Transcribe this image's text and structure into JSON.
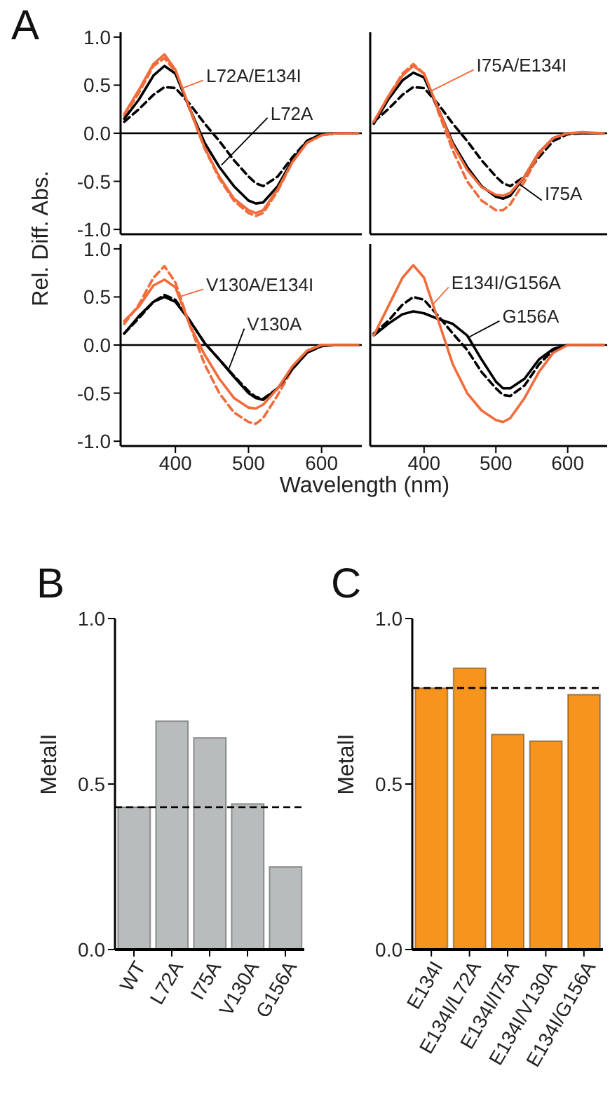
{
  "chart_data": [
    {
      "type": "line",
      "title": "A",
      "ylabel": "Rel. Diff. Abs.",
      "x": [
        330,
        350,
        370,
        385,
        400,
        420,
        440,
        460,
        480,
        500,
        510,
        520,
        540,
        560,
        580,
        600,
        620,
        650
      ],
      "xlim": [
        325,
        655
      ],
      "xticks": [
        400,
        500,
        600
      ],
      "ylim": [
        -1.05,
        1.05
      ],
      "yticks": [
        {
          "value": -1,
          "label": "-1.0"
        },
        {
          "value": -0.5,
          "label": "-0.5"
        },
        {
          "value": 0,
          "label": "0.0"
        },
        {
          "value": 0.5,
          "label": "0.5"
        },
        {
          "value": 1,
          "label": "1.0"
        }
      ],
      "tick_labels": "y",
      "ref_lines": [
        {
          "axis": "y",
          "value": 0,
          "color": "#000000"
        }
      ],
      "series": [
        {
          "color": "#000000",
          "line_style": "dashed",
          "values": [
            0.12,
            0.25,
            0.4,
            0.48,
            0.47,
            0.3,
            0.1,
            -0.08,
            -0.28,
            -0.45,
            -0.52,
            -0.55,
            -0.45,
            -0.25,
            -0.08,
            -0.01,
            0,
            0
          ]
        },
        {
          "color": "#f26b3a",
          "line_style": "dashed",
          "values": [
            0.18,
            0.42,
            0.7,
            0.78,
            0.64,
            0.24,
            -0.16,
            -0.47,
            -0.7,
            -0.83,
            -0.86,
            -0.83,
            -0.6,
            -0.3,
            -0.1,
            -0.02,
            0,
            0
          ]
        },
        {
          "name": "L72A",
          "color": "#000000",
          "line_style": "solid",
          "values": [
            0.15,
            0.35,
            0.6,
            0.7,
            0.62,
            0.25,
            -0.1,
            -0.35,
            -0.55,
            -0.7,
            -0.73,
            -0.72,
            -0.55,
            -0.28,
            -0.08,
            -0.01,
            0,
            0
          ]
        },
        {
          "name": "L72A/E134I",
          "color": "#f26b3a",
          "line_style": "solid",
          "values": [
            0.2,
            0.45,
            0.72,
            0.82,
            0.66,
            0.25,
            -0.15,
            -0.45,
            -0.68,
            -0.8,
            -0.83,
            -0.8,
            -0.58,
            -0.3,
            -0.1,
            -0.02,
            0,
            0
          ]
        }
      ]
    },
    {
      "type": "line",
      "x": [
        330,
        350,
        370,
        385,
        400,
        420,
        440,
        460,
        480,
        500,
        510,
        520,
        540,
        560,
        580,
        600,
        620,
        650
      ],
      "xlim": [
        325,
        655
      ],
      "xticks": [
        400,
        500,
        600
      ],
      "ylim": [
        -1.05,
        1.05
      ],
      "yticks": [
        {
          "value": -1,
          "label": null
        },
        {
          "value": -0.5,
          "label": null
        },
        {
          "value": 0,
          "label": null
        },
        {
          "value": 0.5,
          "label": null
        },
        {
          "value": 1,
          "label": null
        }
      ],
      "tick_labels": false,
      "ref_lines": [
        {
          "axis": "y",
          "value": 0,
          "color": "#000000"
        }
      ],
      "series": [
        {
          "color": "#000000",
          "line_style": "dashed",
          "values": [
            0.12,
            0.25,
            0.4,
            0.48,
            0.47,
            0.3,
            0.1,
            -0.08,
            -0.28,
            -0.45,
            -0.52,
            -0.55,
            -0.45,
            -0.25,
            -0.08,
            -0.01,
            0,
            0
          ]
        },
        {
          "color": "#f26b3a",
          "line_style": "dashed",
          "values": [
            0.12,
            0.38,
            0.62,
            0.72,
            0.62,
            0.22,
            -0.18,
            -0.5,
            -0.7,
            -0.8,
            -0.8,
            -0.74,
            -0.5,
            -0.22,
            -0.05,
            0,
            0,
            0
          ]
        },
        {
          "name": "I75A",
          "color": "#000000",
          "line_style": "solid",
          "values": [
            0.1,
            0.35,
            0.55,
            0.63,
            0.58,
            0.25,
            -0.1,
            -0.35,
            -0.55,
            -0.66,
            -0.68,
            -0.65,
            -0.45,
            -0.2,
            -0.05,
            0,
            0,
            0
          ]
        },
        {
          "name": "I75A/E134I",
          "color": "#f26b3a",
          "line_style": "solid",
          "values": [
            0.12,
            0.38,
            0.6,
            0.7,
            0.62,
            0.25,
            -0.12,
            -0.38,
            -0.56,
            -0.64,
            -0.65,
            -0.62,
            -0.45,
            -0.2,
            -0.05,
            0,
            0.01,
            0
          ]
        }
      ]
    },
    {
      "type": "line",
      "xlabel": "Wavelength (nm)",
      "x": [
        330,
        350,
        370,
        385,
        400,
        420,
        440,
        460,
        480,
        500,
        510,
        520,
        540,
        560,
        580,
        600,
        620,
        650
      ],
      "xlim": [
        325,
        655
      ],
      "xticks": [
        400,
        500,
        600
      ],
      "ylim": [
        -1.05,
        1.05
      ],
      "yticks": [
        {
          "value": -1,
          "label": "-1.0"
        },
        {
          "value": -0.5,
          "label": "-0.5"
        },
        {
          "value": 0,
          "label": "0.0"
        },
        {
          "value": 0.5,
          "label": "0.5"
        },
        {
          "value": 1,
          "label": "1.0"
        }
      ],
      "ref_lines": [
        {
          "axis": "y",
          "value": 0,
          "color": "#000000"
        }
      ],
      "series": [
        {
          "color": "#000000",
          "line_style": "dashed",
          "values": [
            0.12,
            0.28,
            0.45,
            0.52,
            0.47,
            0.25,
            0.02,
            -0.15,
            -0.32,
            -0.48,
            -0.54,
            -0.56,
            -0.45,
            -0.25,
            -0.08,
            -0.01,
            0,
            0
          ]
        },
        {
          "color": "#f26b3a",
          "line_style": "dashed",
          "values": [
            0.22,
            0.42,
            0.7,
            0.82,
            0.65,
            0.2,
            -0.2,
            -0.5,
            -0.7,
            -0.8,
            -0.82,
            -0.76,
            -0.52,
            -0.25,
            -0.06,
            0,
            0,
            0
          ]
        },
        {
          "name": "V130A",
          "color": "#000000",
          "line_style": "solid",
          "values": [
            0.12,
            0.3,
            0.45,
            0.5,
            0.45,
            0.25,
            0.02,
            -0.15,
            -0.33,
            -0.5,
            -0.55,
            -0.57,
            -0.45,
            -0.25,
            -0.08,
            -0.01,
            0,
            0
          ]
        },
        {
          "name": "V130A/E134I",
          "color": "#f26b3a",
          "line_style": "solid",
          "values": [
            0.25,
            0.4,
            0.62,
            0.68,
            0.6,
            0.2,
            -0.1,
            -0.35,
            -0.55,
            -0.65,
            -0.66,
            -0.62,
            -0.45,
            -0.22,
            -0.06,
            0,
            0,
            0
          ]
        }
      ]
    },
    {
      "type": "line",
      "x": [
        330,
        350,
        370,
        385,
        400,
        420,
        440,
        460,
        480,
        500,
        510,
        520,
        540,
        560,
        580,
        600,
        620,
        650
      ],
      "xlim": [
        325,
        655
      ],
      "xticks": [
        400,
        500,
        600
      ],
      "ylim": [
        -1.05,
        1.05
      ],
      "yticks": [
        {
          "value": -1,
          "label": null
        },
        {
          "value": -0.5,
          "label": null
        },
        {
          "value": 0,
          "label": null
        },
        {
          "value": 0.5,
          "label": null
        },
        {
          "value": 1,
          "label": null
        }
      ],
      "tick_labels": "x",
      "ref_lines": [
        {
          "axis": "y",
          "value": 0,
          "color": "#000000"
        }
      ],
      "series": [
        {
          "color": "#000000",
          "line_style": "dashed",
          "values": [
            0.12,
            0.25,
            0.42,
            0.5,
            0.47,
            0.3,
            0.12,
            -0.05,
            -0.28,
            -0.45,
            -0.52,
            -0.53,
            -0.42,
            -0.2,
            -0.05,
            0,
            0,
            0
          ]
        },
        {
          "name": "G156A",
          "color": "#000000",
          "line_style": "solid",
          "values": [
            0.1,
            0.22,
            0.32,
            0.35,
            0.33,
            0.27,
            0.22,
            0.1,
            -0.15,
            -0.38,
            -0.45,
            -0.45,
            -0.35,
            -0.15,
            -0.04,
            0,
            0,
            0
          ]
        },
        {
          "name": "E134I/G156A",
          "color": "#f26b3a",
          "line_style": "solid",
          "values": [
            0.1,
            0.4,
            0.7,
            0.83,
            0.7,
            0.25,
            -0.2,
            -0.5,
            -0.68,
            -0.78,
            -0.8,
            -0.76,
            -0.55,
            -0.28,
            -0.08,
            0,
            0,
            0
          ]
        }
      ]
    },
    {
      "type": "bar",
      "title": "B",
      "ylabel": "MetalI",
      "categories": [
        "WT",
        "L72A",
        "I75A",
        "V130A",
        "G156A"
      ],
      "values": [
        0.43,
        0.69,
        0.64,
        0.44,
        0.25
      ],
      "color": "#b9bcbc",
      "ylim": [
        0,
        1
      ],
      "yticks": [
        {
          "value": 0,
          "label": "0.0"
        },
        {
          "value": 0.5,
          "label": "0.5"
        },
        {
          "value": 1,
          "label": "1.0"
        }
      ],
      "ref_lines": [
        {
          "axis": "y",
          "value": 0.43,
          "color": "#000000",
          "line_style": "dashed"
        }
      ]
    },
    {
      "type": "bar",
      "title": "C",
      "ylabel": "MetalI",
      "categories": [
        "E134I",
        "E134I/L72A",
        "E134I/I75A",
        "E134I/V130A",
        "E134I/G156A"
      ],
      "values": [
        0.79,
        0.85,
        0.65,
        0.63,
        0.77
      ],
      "color": "#f7941d",
      "ylim": [
        0,
        1
      ],
      "yticks": [
        {
          "value": 0,
          "label": "0.0"
        },
        {
          "value": 0.5,
          "label": "0.5"
        },
        {
          "value": 1,
          "label": "1.0"
        }
      ],
      "ref_lines": [
        {
          "axis": "y",
          "value": 0.79,
          "color": "#000000",
          "line_style": "dashed"
        }
      ]
    }
  ]
}
